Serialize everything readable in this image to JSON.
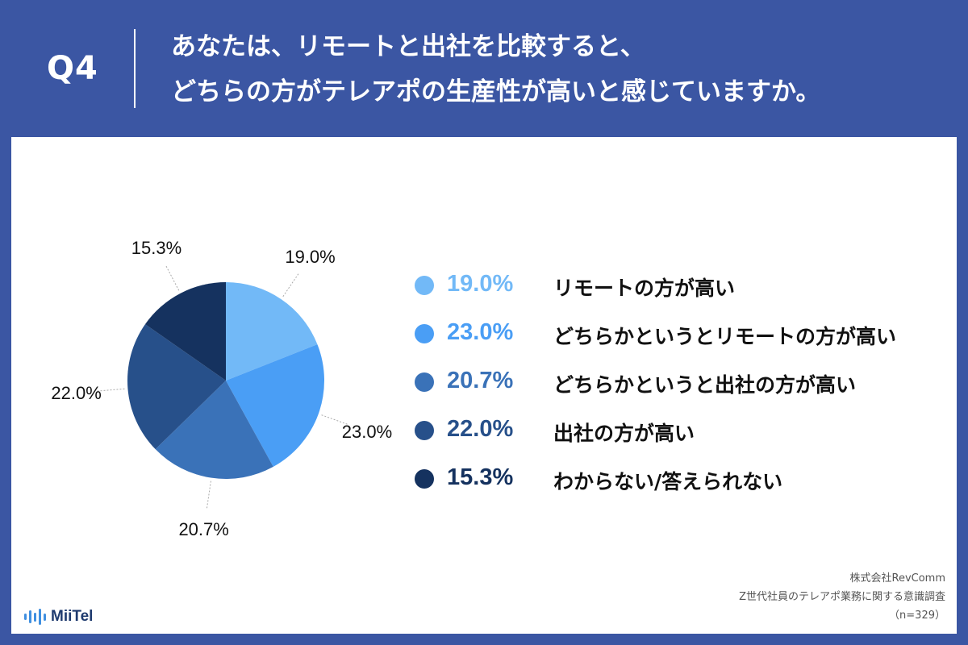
{
  "question": {
    "label": "Q4",
    "line1": "あなたは、リモートと出社を比較すると、",
    "line2": "どちらの方がテレアポの生産性が高いと感じていますか。"
  },
  "chart_data": {
    "type": "pie",
    "categories": [
      "リモートの方が高い",
      "どちらかというとリモートの方が高い",
      "どちらかというと出社の方が高い",
      "出社の方が高い",
      "わからない/答えられない"
    ],
    "values": [
      19.0,
      23.0,
      20.7,
      22.0,
      15.3
    ],
    "value_labels": [
      "19.0%",
      "23.0%",
      "20.7%",
      "22.0%",
      "15.3%"
    ],
    "colors": [
      "#72b9f7",
      "#4a9ef5",
      "#3a72b8",
      "#27508a",
      "#15325f"
    ],
    "start_angle": "12 o'clock",
    "direction": "clockwise"
  },
  "legend": {
    "items": [
      {
        "pct": "19.0%",
        "label": "リモートの方が高い",
        "color": "#72b9f7"
      },
      {
        "pct": "23.0%",
        "label": "どちらかというとリモートの方が高い",
        "color": "#4a9ef5"
      },
      {
        "pct": "20.7%",
        "label": "どちらかというと出社の方が高い",
        "color": "#3a72b8"
      },
      {
        "pct": "22.0%",
        "label": "出社の方が高い",
        "color": "#27508a"
      },
      {
        "pct": "15.3%",
        "label": "わからない/答えられない",
        "color": "#15325f"
      }
    ]
  },
  "footer": {
    "company": "株式会社RevComm",
    "survey": "Z世代社員のテレアポ業務に関する意識調査",
    "sample": "（n=329）"
  },
  "logo": {
    "text": "MiiTel",
    "icon": "sound-wave-icon"
  }
}
